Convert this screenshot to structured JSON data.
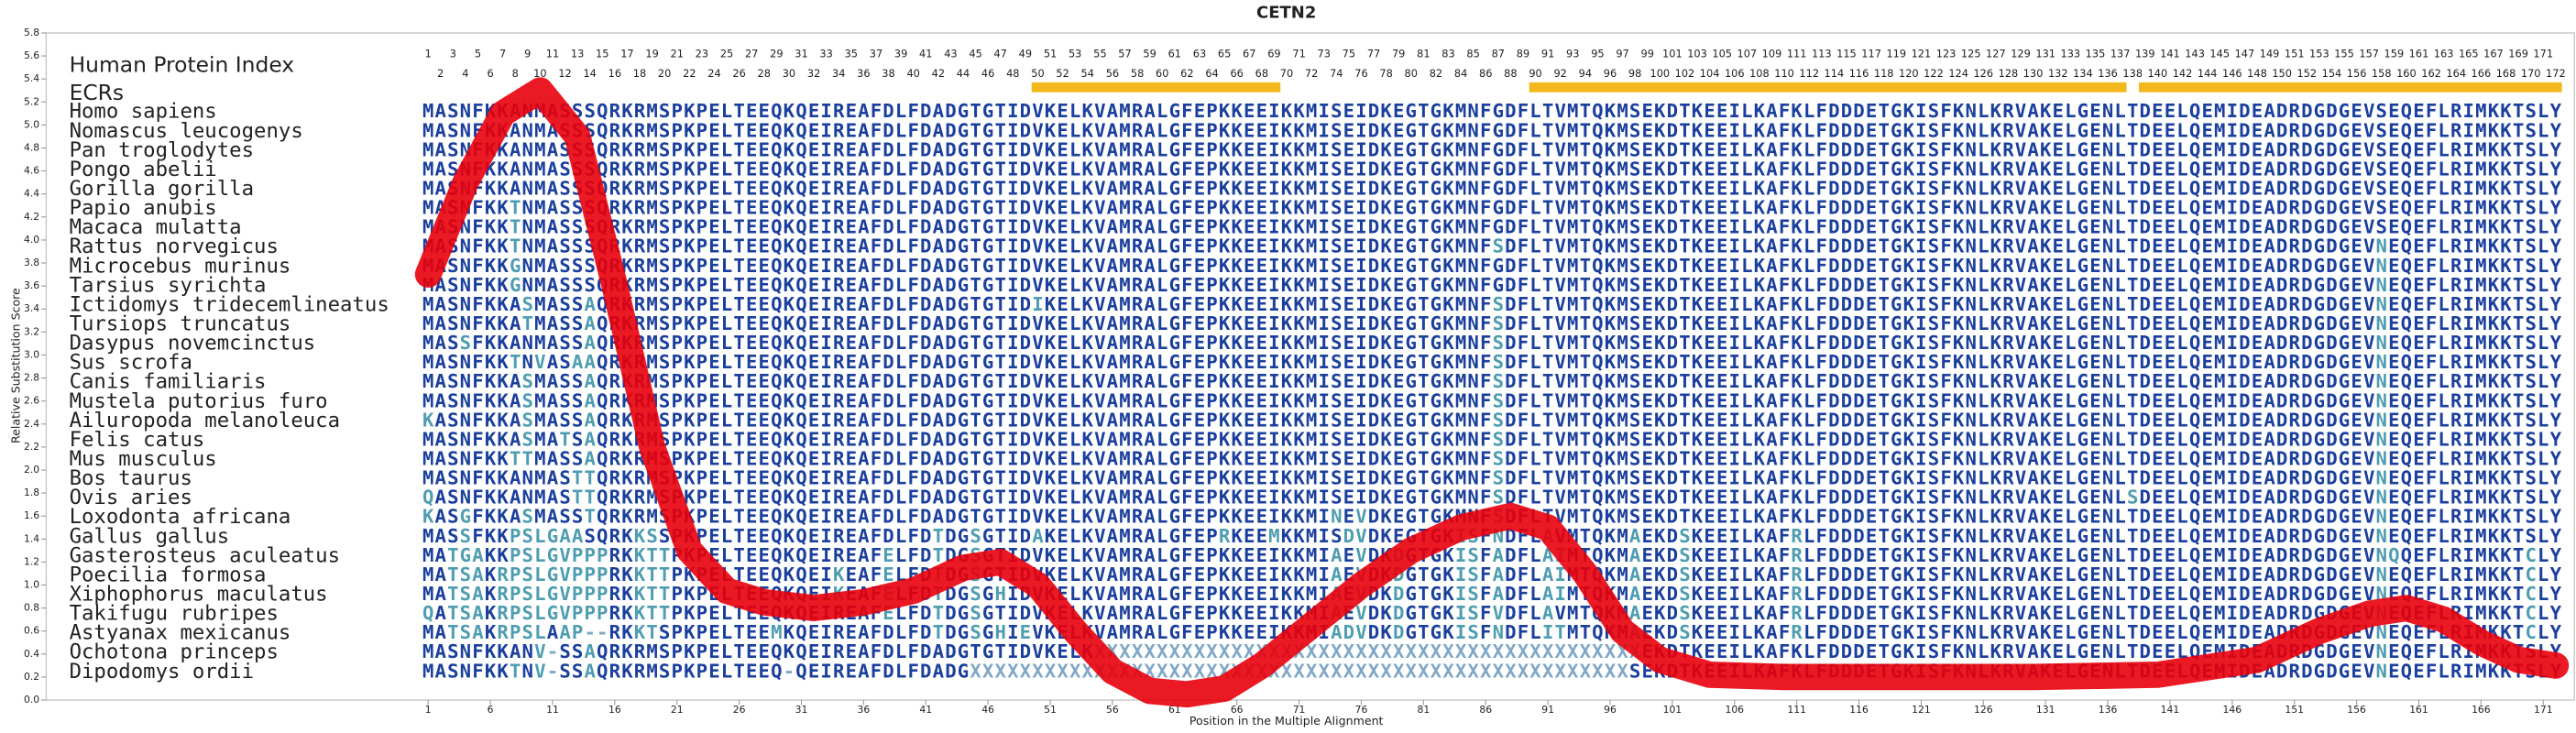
{
  "chart_data": {
    "type": "line",
    "title": "CETN2",
    "xlabel": "Position in the Multiple Alignment",
    "ylabel": "Relative Substitution Score",
    "index_label": "Human Protein Index",
    "ecr_label": "ECRs",
    "ecr_color": "#f3b81c",
    "ecrs": [
      [
        50,
        69
      ],
      [
        90,
        137
      ],
      [
        139,
        172
      ]
    ],
    "color": "#e8000b",
    "x": [
      1,
      4,
      7,
      10,
      13,
      16,
      19,
      22,
      25,
      28,
      32,
      36,
      40,
      44,
      47,
      50,
      53,
      56,
      59,
      62,
      65,
      68,
      72,
      76,
      80,
      84,
      88,
      91,
      94,
      97,
      100,
      104,
      110,
      120,
      130,
      140,
      148,
      153,
      157,
      160,
      163,
      166,
      169,
      172
    ],
    "values": [
      3.7,
      4.5,
      5.1,
      5.3,
      4.9,
      3.6,
      2.2,
      1.3,
      0.95,
      0.85,
      0.8,
      0.85,
      0.95,
      1.15,
      1.2,
      1.0,
      0.6,
      0.25,
      0.08,
      0.05,
      0.1,
      0.3,
      0.65,
      1.0,
      1.3,
      1.5,
      1.6,
      1.5,
      1.1,
      0.6,
      0.35,
      0.22,
      0.2,
      0.2,
      0.2,
      0.22,
      0.35,
      0.6,
      0.75,
      0.8,
      0.7,
      0.5,
      0.35,
      0.3
    ],
    "xlim": [
      -29.7,
      173.5
    ],
    "ylim": [
      0,
      5.8
    ],
    "xticks": [
      1,
      6,
      11,
      16,
      21,
      26,
      31,
      36,
      41,
      46,
      51,
      56,
      61,
      66,
      71,
      76,
      81,
      86,
      91,
      96,
      101,
      106,
      111,
      116,
      121,
      126,
      131,
      136,
      141,
      146,
      151,
      156,
      161,
      166,
      171
    ],
    "yticks": [
      {
        "value": 0,
        "label": "0.0"
      },
      0.2,
      0.4,
      0.6,
      0.8,
      {
        "value": 1,
        "label": "1.0"
      },
      1.2,
      1.4,
      1.6,
      1.8,
      {
        "value": 2,
        "label": "2.0"
      },
      2.2,
      2.4,
      2.6,
      2.8,
      {
        "value": 3,
        "label": "3.0"
      },
      3.2,
      3.4,
      3.6,
      3.8,
      {
        "value": 4,
        "label": "4.0"
      },
      4.2,
      4.4,
      4.6,
      4.8,
      {
        "value": 5,
        "label": "5.0"
      },
      5.2,
      5.4,
      5.6,
      5.8
    ],
    "index_numbers": [
      1,
      2,
      3,
      4,
      5,
      6,
      7,
      8,
      9,
      10,
      11,
      12,
      13,
      14,
      15,
      16,
      17,
      18,
      19,
      20,
      21,
      22,
      23,
      24,
      25,
      26,
      27,
      28,
      29,
      30,
      31,
      32,
      33,
      34,
      35,
      36,
      37,
      38,
      39,
      40,
      41,
      42,
      43,
      44,
      45,
      46,
      47,
      48,
      49,
      50,
      51,
      52,
      53,
      54,
      55,
      56,
      57,
      58,
      59,
      60,
      61,
      62,
      63,
      64,
      65,
      66,
      67,
      68,
      69,
      70,
      71,
      72,
      73,
      74,
      75,
      76,
      77,
      78,
      79,
      80,
      81,
      82,
      83,
      84,
      85,
      86,
      87,
      88,
      89,
      90,
      91,
      92,
      93,
      94,
      95,
      96,
      97,
      98,
      99,
      100,
      101,
      102,
      103,
      104,
      105,
      106,
      107,
      108,
      109,
      110,
      111,
      112,
      113,
      114,
      115,
      116,
      117,
      118,
      119,
      120,
      121,
      122,
      123,
      124,
      125,
      126,
      127,
      128,
      129,
      130,
      131,
      132,
      133,
      134,
      135,
      136,
      137,
      138,
      139,
      140,
      141,
      142,
      143,
      144,
      145,
      146,
      147,
      148,
      149,
      150,
      151,
      152,
      153,
      154,
      155,
      156,
      157,
      158,
      159,
      160,
      161,
      162,
      163,
      164,
      165,
      166,
      167,
      168,
      169,
      170,
      171,
      172
    ],
    "species": [
      {
        "name": "Homo sapiens",
        "sequence": "MASNFKKANMASSSQRKRMSPKPELTEEQKQEIREAFDLFDADGTGTIDVKELKVAMRALGFEPKKEEIKKMISEIDKEGTGKMNFGDFLTVMTQKMSEKDTKEEILKAFKLFDDDETGKISFKNLKRVAKELGENLTDEELQEMIDEADRDGDGEVSEQEFLRIMKKTSLY"
      },
      {
        "name": "Nomascus leucogenys",
        "sequence": "MASNFKKANMASSSQRKRMSPKPELTEEQKQEIREAFDLFDADGTGTIDVKELKVAMRALGFEPKKEEIKKMISEIDKEGTGKMNFGDFLTVMTQKMSEKDTKEEILKAFKLFDDDETGKISFKNLKRVAKELGENLTDEELQEMIDEADRDGDGEVSEQEFLRIMKKTSLY"
      },
      {
        "name": "Pan troglodytes",
        "sequence": "MASNFKKANMASSSQRKRMSPKPELTEEQKQEIREAFDLFDADGTGTIDVKELKVAMRALGFEPKKEEIKKMISEIDKEGTGKMNFGDFLTVMTQKMSEKDTKEEILKAFKLFDDDETGKISFKNLKRVAKELGENLTDEELQEMIDEADRDGDGEVSEQEFLRIMKKTSLY"
      },
      {
        "name": "Pongo abelii",
        "sequence": "MASNFKKANMASSSQRKRMSPKPELTEEQKQEIREAFDLFDADGTGTIDVKELKVAMRALGFEPKKEEIKKMISEIDKEGTGKMNFGDFLTVMTQKMSEKDTKEEILKAFKLFDDDETGKISFKNLKRVAKELGENLTDEELQEMIDEADRDGDGEVSEQEFLRIMKKTSLY"
      },
      {
        "name": "Gorilla gorilla",
        "sequence": "MASNFKKANMASSSQRKRMSPKPELTEEQKQEIREAFDLFDADGTGTIDVKELKVAMRALGFEPKKEEIKKMISEIDKEGTGKMNFGDFLTVMTQKMSEKDTKEEILKAFKLFDDDETGKISFKNLKRVAKELGENLTDEELQEMIDEADRDGDGEVSEQEFLRIMKKTSLY"
      },
      {
        "name": "Papio anubis",
        "sequence": "MASNFKKTNMASSSQRKRMSPKPELTEEQKQEIREAFDLFDADGTGTIDVKELKVAMRALGFEPKKEEIKKMISEIDKEGTGKMNFGDFLTVMTQKMSEKDTKEEILKAFKLFDDDETGKISFKNLKRVAKELGENLTDEELQEMIDEADRDGDGEVSEQEFLRIMKKTSLY"
      },
      {
        "name": "Macaca mulatta",
        "sequence": "MASNFKKTNMASSSQRKRMSPKPELTEEQKQEIREAFDLFDADGTGTIDVKELKVAMRALGFEPKKEEIKKMISEIDKEGTGKMNFGDFLTVMTQKMSEKDTKEEILKAFKLFDDDETGKISFKNLKRVAKELGENLTDEELQEMIDEADRDGDGEVSEQEFLRIMKKTSLY"
      },
      {
        "name": "Rattus norvegicus",
        "sequence": "MASNFKKTNMASSSQRKRMSPKPELTEEQKQEIREAFDLFDADGTGTIDVKELKVAMRALGFEPKKEEIKKMISEIDKEGTGKMNFSDFLTVMTQKMSEKDTKEEILKAFKLFDDDETGKISFKNLKRVAKELGENLTDEELQEMIDEADRDGDGEVNEQEFLRIMKKTSLY"
      },
      {
        "name": "Microcebus murinus",
        "sequence": "MASNFKKGNMASSSQRKRMSPKPELTEEQKQEIREAFDLFDADGTGTIDVKELKVAMRALGFEPKKEEIKKMISEIDKEGTGKMNFGDFLTVMTQKMSEKDTKEEILKAFKLFDDDETGKISFKNLKRVAKELGENLTDEELQEMIDEADRDGDGEVNEQEFLRIMKKTSLY"
      },
      {
        "name": "Tarsius syrichta",
        "sequence": "MASNFKKGNMASSSQRKRMSPKPELTEEQKQEIREAFDLFDADGTGTIDVKELKVAMRALGFEPKKEEIKKMISEIDKEGTGKMNFGDFLTVMTQKMSEKDTKEEILKAFKLFDDDETGKISFKNLKRVAKELGENLTDEELQEMIDEADRDGDGEVNEQEFLRIMKKTSLY"
      },
      {
        "name": "Ictidomys tridecemlineatus",
        "sequence": "MASNFKKASMASSAQRKRMSPKPELTEEQKQEIREAFDLFDADGTGTIDIKELKVAMRALGFEPKKEEIKKMISEIDKEGTGKMNFSDFLTVMTQKMSEKDTKEEILKAFKLFDDDETGKISFKNLKRVAKELGENLTDEELQEMIDEADRDGDGEVNEQEFLRIMKKTSLY"
      },
      {
        "name": "Tursiops truncatus",
        "sequence": "MASNFKKATMASSAQRKRMSPKPELTEEQKQEIREAFDLFDADGTGTIDVKELKVAMRALGFEPKKEEIKKMISEIDKEGTGKMNFSDFLTVMTQKMSEKDTKEEILKAFKLFDDDETGKISFKNLKRVAKELGENLTDEELQEMIDEADRDGDGEVNEQEFLRIMKKTSLY"
      },
      {
        "name": "Dasypus novemcinctus",
        "sequence": "MASSFKKANMASSAQRKRMSPKPELTEEQKQEIREAFDLFDADGTGTIDVKELKVAMRALGFEPKKEEIKKMISEIDKEGTGKMNFSDFLTVMTQKMSEKDTKEEILKAFKLFDDDETGKISFKNLKRVAKELGENLTDEELQEMIDEADRDGDGEVNEQEFLRIMKKTSLY"
      },
      {
        "name": "Sus scrofa",
        "sequence": "MASNFKKTNVASAAQRKRMSPKPELTEEQKQEIREAFDLFDADGTGTIDVKELKVAMRALGFEPKKEEIKKMISEIDKEGTGKMNFSDFLTVMTQKMSEKDTKEEILKAFKLFDDDETGKISFKNLKRVAKELGENLTDEELQEMIDEADRDGDGEVNEQEFLRIMKKTSLY"
      },
      {
        "name": "Canis familiaris",
        "sequence": "MASNFKKASMASSAQRKRMSPKPELTEEQKQEIREAFDLFDADGTGTIDVKELKVAMRALGFEPKKEEIKKMISEIDKEGTGKMNFSDFLTVMTQKMSEKDTKEEILKAFKLFDDDETGKISFKNLKRVAKELGENLTDEELQEMIDEADRDGDGEVNEQEFLRIMKKTSLY"
      },
      {
        "name": "Mustela putorius furo",
        "sequence": "MASNFKKASMASSAQRKRMSPKPELTEEQKQEIREAFDLFDADGTGTIDVKELKVAMRALGFEPKKEEIKKMISEIDKEGTGKMNFSDFLTVMTQKMSEKDTKEEILKAFKLFDDDETGKISFKNLKRVAKELGENLTDEELQEMIDEADRDGDGEVNEQEFLRIMKKTSLY"
      },
      {
        "name": "Ailuropoda melanoleuca",
        "sequence": "KASNFKKASMASSAQRKRMSPKPELTEEQKQEIREAFDLFDADGTGTIDVKELKVAMRALGFEPKKEEIKKMISEIDKEGTGKMNFSDFLTVMTQKMSEKDTKEEILKAFKLFDDDETGKISFKNLKRVAKELGENLTDEELQEMIDEADRDGDGEVNEQEFLRIMKKTSLY"
      },
      {
        "name": "Felis catus",
        "sequence": "MASNFKKASMATSAQRKRMSPKPELTEEQKQEIREAFDLFDADGTGTIDVKELKVAMRALGFEPKKEEIKKMISEIDKEGTGKMNFSDFLTVMTQKMSEKDTKEEILKAFKLFDDDETGKISFKNLKRVAKELGENLTDEELQEMIDEADRDGDGEVNEQEFLRIMKKTSLY"
      },
      {
        "name": "Mus musculus",
        "sequence": "MASNFKKTTMASSAQRKRMSPKPELTEEQKQEIREAFDLFDADGTGTIDVKELKVAMRALGFEPKKEEIKKMISEIDKEGTGKMNFSDFLTVMTQKMSEKDTKEEILKAFKLFDDDETGKISFKNLKRVAKELGENLTDEELQEMIDEADRDGDGEVNEQEFLRIMKKTSLY"
      },
      {
        "name": "Bos taurus",
        "sequence": "MASNFKKANMASTTQRKRMSPKPELTEEQKQEIREAFDLFDADGTGTIDVKELKVAMRALGFEPKKEEIKKMISEIDKEGTGKMNFSDFLTVMTQKMSEKDTKEEILKAFKLFDDDETGKISFKNLKRVAKELGENLTDEELQEMIDEADRDGDGEVNEQEFLRIMKKTSLY"
      },
      {
        "name": "Ovis aries",
        "sequence": "QASNFKKANMASTTQRKRMSPKPELTEEQKQEIREAFDLFDADGTGTIDVKELKVAMRALGFEPKKEEIKKMISEIDKEGTGKMNFSDFLTVMTQKMSEKDTKEEILKAFKLFDDDETGKISFKNLKRVAKELGENLSDEELQEMIDEADRDGDGEVNEQEFLRIMKKTSLY"
      },
      {
        "name": "Loxodonta africana",
        "sequence": "KASGFKKASMASSTQRKRMSPKPELTEEQKQEIREAFDLFDADGTGTIDVKELKVAMRALGFEPKKEEIKKMINEVDKEGTGKMNFSDFLTVMTQKMSEKDTKEEILKAFKLFDDDETGKISFKNLKRVAKELGENLTDEELQEMIDEADRDGDGEVNEQEFLRIMKKTSLY"
      },
      {
        "name": "Gallus gallus",
        "sequence": "MASSFKKPSLGAASQRKKSSPKPELTEEQKQEIREAFDLFDTDGSGTIDAKELKVAMRALGFEPRKEEMKKMISDVDKEGTGKISFNDFLAVMTQKMAEKDSKEEILKAFRLFDDDETGKISFKNLKRVAKELGENLTDEELQEMIDEADRDGDGEVNEQEFLRIMKKTSLY"
      },
      {
        "name": "Gasterosteus aculeatus",
        "sequence": "MATGAKKPSLGVPPPRKKTTPKPELTEEQKQEIREAFELFDTDGSGTIDVKELKVAMRALGFEPKKEEIKKMIAEVDKDGTGKISFADFLAIMTQKMAEKDSKEEILKAFRLFDDDETGKISFKNLKRVAKELGENLTDEELQEMIDEADRDGDGEVNQQEFLRIMKKTCLY"
      },
      {
        "name": "Poecilia formosa",
        "sequence": "MATSAKRPSLGVPPPRKKTTPKPELTEEQKQEIKEAFELFDTDGSGTIDVKELKVAMRALGFEPKKEEIKKMIAEVDKDGTGKISFADFLAIMTQKMAEKDSKEEILKAFRLFDDDETGKISFKNLKRVAKELGENLTDEELQEMIDEADRDGDGEVNEQEFLRIMKKTCLY"
      },
      {
        "name": "Xiphophorus maculatus",
        "sequence": "MATSAKRPSLGVPPPRKKTTPKPELTEEQKQEIKEAFELFDTDGSGHIDVKELKVAMRALGFEPKKEEIKKMIAEVDKDGTGKISFADFLAIMTQKMAEKDSKEEILKAFRLFDDDETGKISFKNLKRVAKELGENLTDEELQEMIDEADRDGDGEVNEQEFLRIMKKTCLY"
      },
      {
        "name": "Takifugu rubripes",
        "sequence": "QATSAKRPSLGVPPPRKKTTPKPELTEEQKQEIREAFELFDTDGSGTIDVKELKVAMRALGFEPKKEEIKKMIAEVDKDGTGKISFVDFLAVMTQKMAEKDSKEEILKAFRLFDDDETGKISFKNLKRVAKELGENLTDEELQEMIDEADRDGDGEVNEQEFLRIMKKTCLY"
      },
      {
        "name": "Astyanax mexicanus",
        "sequence": "MATSAKRPSLAAP--RKKTSPKPELTEEMKQEIREAFDLFDTDGSGHIEVKELKVAMRALGFEPKKEEIKKMIADVDKDGTGKISFNDFLITMTQKMAEKDSKEEILKAFRLFDDDETGKISFKNLKRVAKELGENLTDEELQEMIDEADRDGDGEVNEQEFLRIMKKTCLY"
      },
      {
        "name": "Ochotona princeps",
        "sequence": "MASNFKKANV-SSAQRKRMSPKPELTEEQKQEIREAFDLFDADGTGTIDVKELKXXXXXXXXXXXXXXXXXXXXXXXXXXXXXXXXXXXXXXXXXXXXEKDTKEEILKAFKLFDDDETGKISFKNLKRVAKELGENLTDEELQEMIDEADRDGDGEVNEQEFLRIMKKTSLY"
      },
      {
        "name": "Dipodomys ordii",
        "sequence": "MASNFKKTNV-SSAQRKRMSPKPELTEEQ-QEIREAFDLFDADGXXXXXXXXXXXXXXXXXXXXXXXXXXXXXXXXXXXXXXXXXXXXXXXXXXXXXSEKDTKEEILKAFKLFDDDETGKISFKNLKRVAKELGENLTDEELQEMIDEADRDGDGEVNEQEFLRIMKKTSLY"
      }
    ]
  }
}
